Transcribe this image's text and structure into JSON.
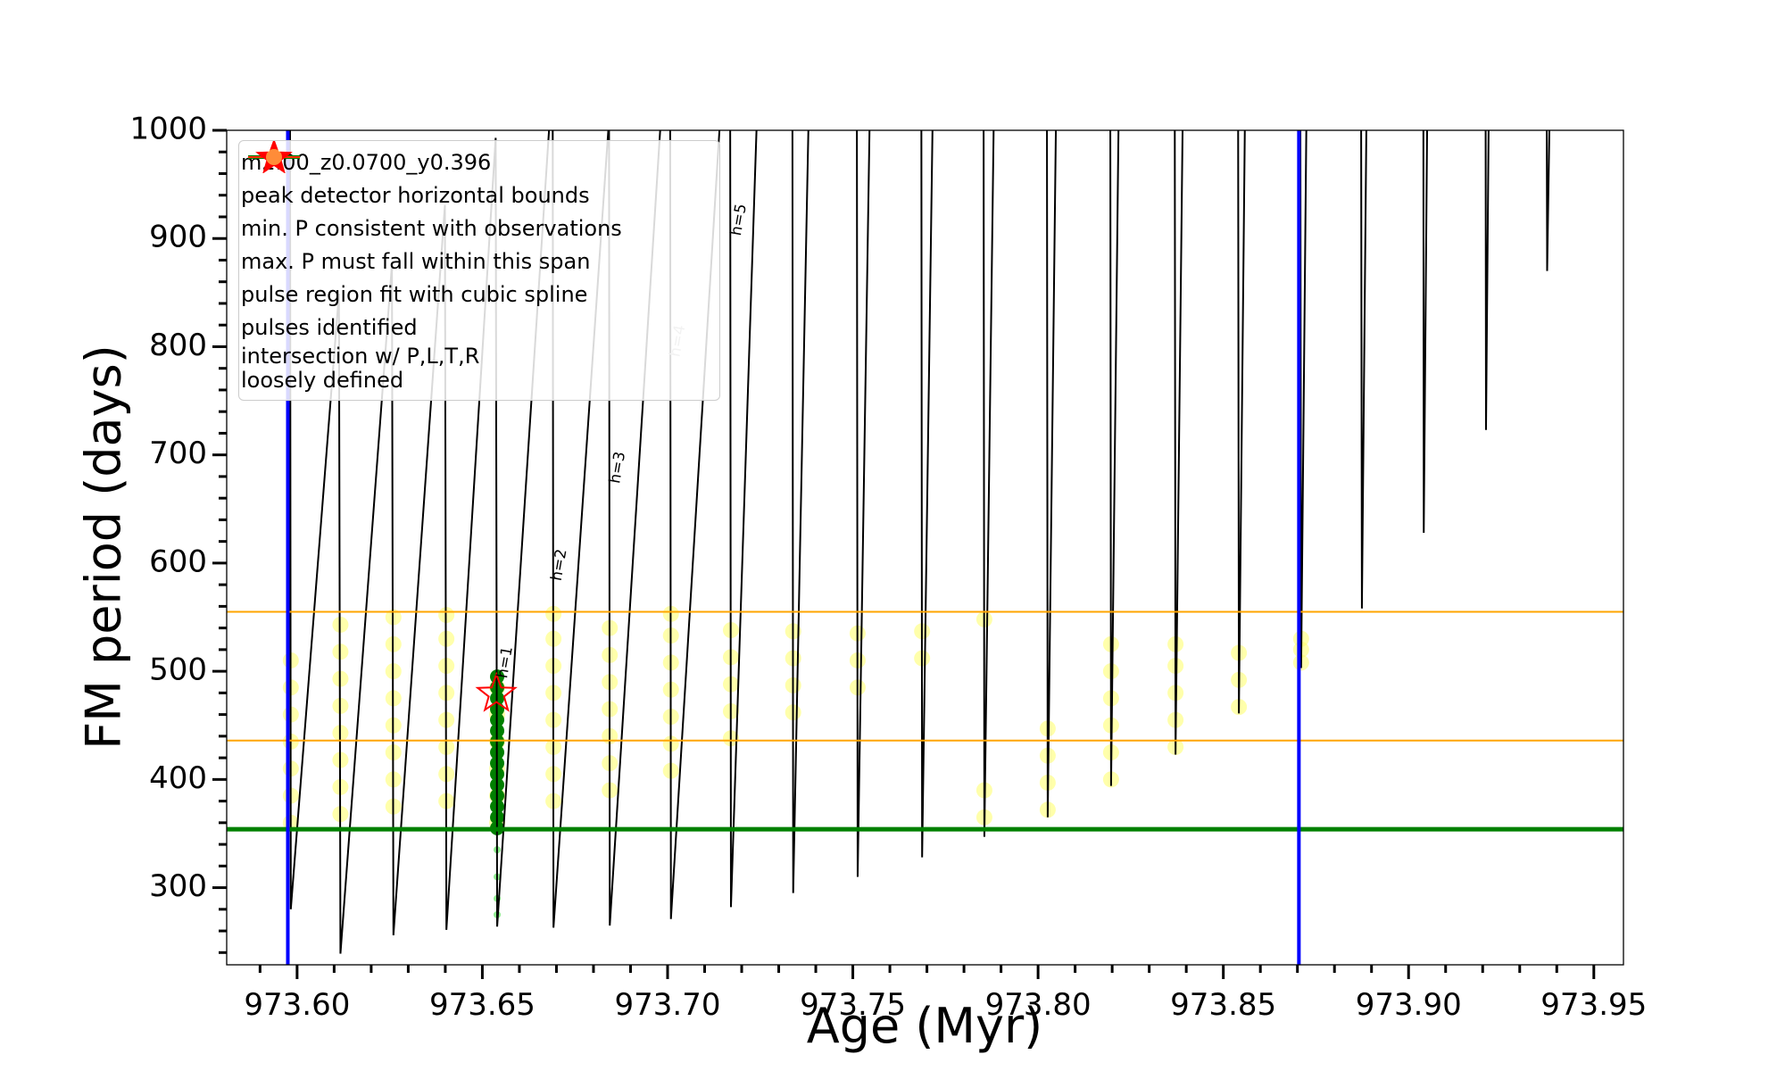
{
  "chart_data": {
    "type": "line",
    "xlabel": "Age (Myr)",
    "ylabel": "FM period (days)",
    "xlim": [
      973.581,
      973.958
    ],
    "ylim": [
      228.7,
      1000
    ],
    "xticks": [
      {
        "value": 973.6,
        "label": "973.60"
      },
      {
        "value": 973.65,
        "label": "973.65"
      },
      {
        "value": 973.7,
        "label": "973.70"
      },
      {
        "value": 973.75,
        "label": "973.75"
      },
      {
        "value": 973.8,
        "label": "973.80"
      },
      {
        "value": 973.85,
        "label": "973.85"
      },
      {
        "value": 973.9,
        "label": "973.90"
      },
      {
        "value": 973.95,
        "label": "973.95"
      }
    ],
    "yticks": [
      300,
      400,
      500,
      600,
      700,
      800,
      900,
      1000
    ],
    "xminor_ticks": [
      973.59,
      973.61,
      973.62,
      973.63,
      973.64,
      973.66,
      973.67,
      973.68,
      973.69,
      973.71,
      973.72,
      973.73,
      973.74,
      973.76,
      973.77,
      973.78,
      973.79,
      973.81,
      973.82,
      973.83,
      973.84,
      973.86,
      973.87,
      973.88,
      973.89,
      973.91,
      973.92,
      973.93,
      973.94
    ],
    "yminor_ticks": [
      240,
      260,
      280,
      320,
      340,
      360,
      380,
      420,
      440,
      460,
      480,
      520,
      540,
      560,
      580,
      620,
      640,
      660,
      680,
      720,
      740,
      760,
      780,
      820,
      840,
      860,
      880,
      920,
      940,
      960,
      980
    ],
    "series": [
      {
        "name": "m2.00_z0.0700_y0.396",
        "type": "line",
        "color": "#000000",
        "x": [
          973.5981,
          973.5983,
          973.6113,
          973.6117,
          973.6256,
          973.626,
          973.6399,
          973.6403,
          973.6536,
          973.654,
          973.668,
          null,
          973.669,
          973.6692,
          973.684,
          null,
          973.6842,
          973.6844,
          973.698,
          null,
          973.7007,
          973.7009,
          973.714,
          null,
          973.7169,
          973.7171,
          973.724,
          null,
          973.7337,
          973.7339,
          973.738,
          null,
          973.7511,
          973.7513,
          973.7545,
          null,
          973.7685,
          973.7687,
          973.7715,
          null,
          973.7853,
          973.7855,
          973.788,
          null,
          973.8024,
          973.8026,
          973.8048,
          null,
          973.8195,
          973.8197,
          973.8217,
          null,
          973.8369,
          973.8371,
          973.839,
          null,
          973.854,
          973.8542,
          973.8558,
          null,
          973.8708,
          973.871,
          973.8724,
          null,
          973.8872,
          973.8874,
          973.8886,
          null,
          973.904,
          973.9041,
          973.905,
          null,
          973.9208,
          973.9209,
          973.9216,
          null,
          973.9373,
          973.9374,
          973.938
        ],
        "y": [
          1000,
          280,
          849,
          239,
          876,
          256,
          931,
          261,
          993,
          264,
          1000,
          null,
          1000,
          263,
          1000,
          null,
          1000,
          265,
          1000,
          null,
          1000,
          271,
          1000,
          null,
          1000,
          282,
          1000,
          null,
          1000,
          295,
          1000,
          null,
          1000,
          310,
          1000,
          null,
          1000,
          328,
          1000,
          null,
          1000,
          347,
          1000,
          null,
          1000,
          365,
          1000,
          null,
          1000,
          394,
          1000,
          null,
          1000,
          423,
          1000,
          null,
          1000,
          461,
          1000,
          null,
          1000,
          503,
          1000,
          null,
          1000,
          558,
          1000,
          null,
          1000,
          628,
          1000,
          null,
          1000,
          723,
          1000,
          null,
          1000,
          870,
          1000
        ]
      },
      {
        "name": "peak detector horizontal bounds",
        "type": "vline",
        "color": "#0000ff",
        "x": [
          973.5975,
          973.8704
        ]
      },
      {
        "name": "min. P consistent with observations",
        "type": "hline",
        "color": "#008000",
        "y": [
          354
        ]
      },
      {
        "name": "max. P must fall within this span",
        "type": "hline",
        "color": "#ffa500",
        "y": [
          436,
          555
        ]
      },
      {
        "name": "pulse region fit with cubic spline",
        "type": "scatter",
        "color": "#90ee90",
        "x": [
          973.654,
          973.654,
          973.654,
          973.654,
          973.654
        ],
        "y": [
          275,
          290,
          310,
          335,
          355
        ]
      },
      {
        "name": "pulses identified",
        "type": "star",
        "color": "#ff0000",
        "x": [
          973.6538
        ],
        "y": [
          479
        ]
      },
      {
        "name": "intersection w/ P,L,T,R\nloosely defined",
        "type": "scatter",
        "color": "#ffff66",
        "x": [
          973.5983,
          973.5983,
          973.5983,
          973.5983,
          973.5983,
          973.5983,
          973.5983,
          973.6117,
          973.6117,
          973.6117,
          973.6117,
          973.6117,
          973.6117,
          973.6117,
          973.6117,
          973.626,
          973.626,
          973.626,
          973.626,
          973.626,
          973.626,
          973.626,
          973.626,
          973.6403,
          973.6403,
          973.6403,
          973.6403,
          973.6403,
          973.6403,
          973.6403,
          973.6403,
          973.654,
          973.654,
          973.654,
          973.654,
          973.654,
          973.654,
          973.6692,
          973.6692,
          973.6692,
          973.6692,
          973.6692,
          973.6692,
          973.6692,
          973.6692,
          973.6844,
          973.6844,
          973.6844,
          973.6844,
          973.6844,
          973.6844,
          973.6844,
          973.7009,
          973.7009,
          973.7009,
          973.7009,
          973.7009,
          973.7009,
          973.7009,
          973.7171,
          973.7171,
          973.7171,
          973.7171,
          973.7171,
          973.7339,
          973.7339,
          973.7339,
          973.7339,
          973.7513,
          973.7513,
          973.7513,
          973.7687,
          973.7687,
          973.7855,
          973.7855,
          973.7855,
          973.8026,
          973.8026,
          973.8026,
          973.8026,
          973.8197,
          973.8197,
          973.8197,
          973.8197,
          973.8197,
          973.8197,
          973.8371,
          973.8371,
          973.8371,
          973.8371,
          973.8371,
          973.8542,
          973.8542,
          973.8542,
          973.871,
          973.871,
          973.871
        ],
        "y": [
          360,
          385,
          410,
          435,
          460,
          485,
          510,
          368,
          393,
          418,
          443,
          468,
          493,
          518,
          543,
          375,
          400,
          425,
          450,
          475,
          500,
          525,
          550,
          380,
          405,
          430,
          455,
          480,
          505,
          530,
          552,
          360,
          385,
          410,
          435,
          460,
          485,
          380,
          405,
          430,
          455,
          480,
          505,
          530,
          553,
          390,
          415,
          440,
          465,
          490,
          515,
          540,
          408,
          433,
          458,
          483,
          508,
          533,
          553,
          438,
          463,
          488,
          513,
          538,
          462,
          487,
          512,
          537,
          485,
          510,
          535,
          512,
          537,
          548,
          365,
          390,
          372,
          397,
          422,
          447,
          400,
          425,
          450,
          475,
          500,
          525,
          430,
          455,
          480,
          505,
          525,
          467,
          492,
          517,
          508,
          520,
          530
        ]
      },
      {
        "type": "scatter",
        "color": "#008000",
        "x": [
          973.654,
          973.654,
          973.654,
          973.654,
          973.654,
          973.654,
          973.654,
          973.654,
          973.654,
          973.654,
          973.654,
          973.654,
          973.654,
          973.654,
          973.654
        ],
        "y": [
          355,
          365,
          375,
          385,
          395,
          405,
          415,
          425,
          435,
          445,
          455,
          465,
          475,
          485,
          495
        ]
      }
    ],
    "annotations": [
      {
        "text": "h=1",
        "x": 973.6566,
        "y": 493,
        "color": "#000000"
      },
      {
        "text": "h=2",
        "x": 973.6712,
        "y": 583,
        "color": "#000000"
      },
      {
        "text": "h=3",
        "x": 973.687,
        "y": 673,
        "color": "#000000"
      },
      {
        "text": "h=4",
        "x": 973.7032,
        "y": 790,
        "color": "#aaaaaa"
      },
      {
        "text": "h=5",
        "x": 973.7197,
        "y": 902,
        "color": "#000000"
      }
    ]
  }
}
